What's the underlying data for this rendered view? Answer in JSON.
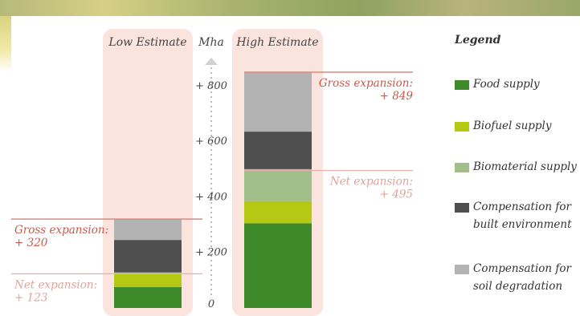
{
  "chart_data": {
    "type": "stacked-bar",
    "unit": "Mha",
    "columns": [
      {
        "title": "Low Estimate",
        "segments": [
          {
            "name": "Food supply",
            "value": 75
          },
          {
            "name": "Biofuel supply",
            "value": 48
          },
          {
            "name": "Biomaterial supply",
            "value": 5
          },
          {
            "name": "Compensation for built environment",
            "value": 117
          },
          {
            "name": "Compensation for soil degradation",
            "value": 75
          }
        ],
        "gross_label": "Gross expansion:",
        "gross_value": "+ 320",
        "gross_total": 320,
        "net_label": "Net expansion:",
        "net_value": "+ 123",
        "net_total": 123
      },
      {
        "title": "High Estimate",
        "segments": [
          {
            "name": "Food supply",
            "value": 305
          },
          {
            "name": "Biofuel supply",
            "value": 80
          },
          {
            "name": "Biomaterial supply",
            "value": 115
          },
          {
            "name": "Compensation for built environment",
            "value": 135
          },
          {
            "name": "Compensation for soil degradation",
            "value": 214
          }
        ],
        "gross_label": "Gross expansion:",
        "gross_value": "+ 849",
        "gross_total": 849,
        "net_label": "Net expansion:",
        "net_value": "+ 495",
        "net_total": 495
      }
    ],
    "y_axis": {
      "title": "Mha",
      "ticks": [
        0,
        200,
        400,
        600,
        800
      ],
      "tick_labels": [
        "0",
        "+ 200",
        "+ 400",
        "+ 600",
        "+ 800"
      ],
      "ylim": [
        0,
        900
      ]
    }
  },
  "legend": {
    "title": "Legend",
    "items": [
      {
        "label": "Food supply",
        "color": "#3e8a2b"
      },
      {
        "label": "Biofuel supply",
        "color": "#b4c814"
      },
      {
        "label": "Biomaterial supply",
        "color": "#a0bf8b"
      },
      {
        "label": "Compensation for\nbuilt environment",
        "color": "#4f4f4f"
      },
      {
        "label": "Compensation for\nsoil degradation",
        "color": "#b3b3b3"
      }
    ]
  },
  "colors": {
    "panel_bg": "#fbe3de",
    "gross_line": "#d98a80",
    "gross_text": "#c9594d",
    "net_line": "#e8b0a8",
    "net_text": "#e0a49b",
    "axis": "#bbbbbb"
  }
}
